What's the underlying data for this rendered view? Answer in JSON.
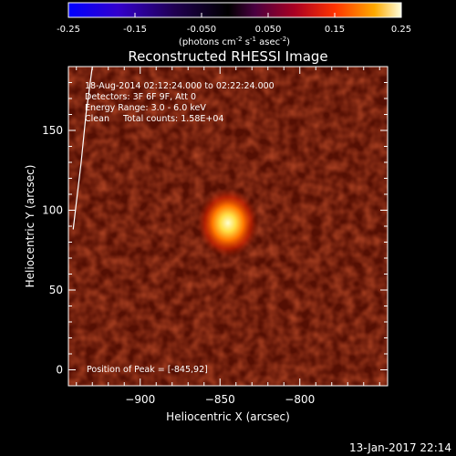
{
  "colorbar": {
    "ticks": [
      "-0.25",
      "-0.15",
      "-0.050",
      "0.050",
      "0.15",
      "0.25"
    ],
    "range": [
      -0.25,
      0.25
    ],
    "unit_label": "(photons cm",
    "unit_sup1": "-2",
    "unit_mid": " s",
    "unit_sup2": "-1",
    "unit_mid2": " asec",
    "unit_sup3": "-2",
    "unit_end": ")",
    "stops": [
      "#0000ff",
      "#4400aa",
      "#000000",
      "#550055",
      "#aa0022",
      "#ff3300",
      "#ffaa00",
      "#ffffcc"
    ]
  },
  "plot": {
    "title": "Reconstructed RHESSI Image",
    "annotations": [
      "18-Aug-2014 02:12:24.000 to 02:22:24.000",
      "Detectors: 3F 6F 9F, Att 0",
      "Energy Range: 3.0 - 6.0 keV",
      "Clean     Total counts: 1.58E+04"
    ],
    "peak_label": "Position of Peak = [-845,92]"
  },
  "chart_data": {
    "type": "heatmap",
    "title": "Reconstructed RHESSI Image",
    "xlabel": "Heliocentric X (arcsec)",
    "ylabel": "Heliocentric Y (arcsec)",
    "xlim": [
      -945,
      -745
    ],
    "ylim": [
      -10,
      190
    ],
    "xticks": [
      -900,
      -850,
      -800
    ],
    "xtick_labels": [
      "−900",
      "−850",
      "−800"
    ],
    "yticks": [
      0,
      50,
      100,
      150
    ],
    "ytick_labels": [
      "0",
      "50",
      "100",
      "150"
    ],
    "peak": {
      "x": -845,
      "y": 92
    },
    "limb_curve": [
      [
        -930,
        190
      ],
      [
        -934,
        160
      ],
      [
        -937,
        130
      ],
      [
        -940,
        105
      ],
      [
        -942,
        88
      ]
    ]
  },
  "timestamp": "13-Jan-2017 22:14"
}
